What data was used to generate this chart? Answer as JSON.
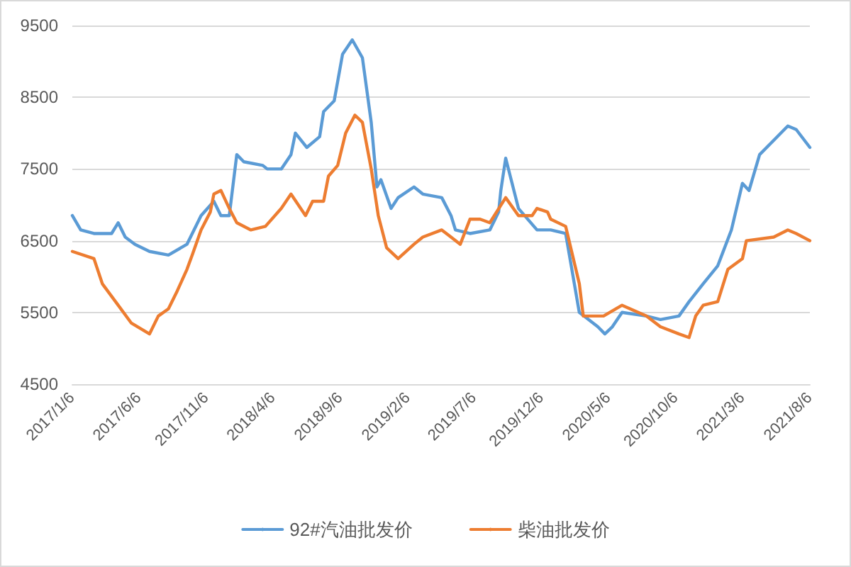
{
  "chart_data": {
    "type": "line",
    "series": [
      {
        "name": "92#汽油批发价",
        "color": "#5b9bd5",
        "x": [
          "2017-01-06",
          "2017-01-25",
          "2017-02-24",
          "2017-04-05",
          "2017-04-20",
          "2017-05-06",
          "2017-05-28",
          "2017-06-30",
          "2017-08-12",
          "2017-09-23",
          "2017-10-25",
          "2017-11-23",
          "2017-12-09",
          "2017-12-28",
          "2018-01-14",
          "2018-01-30",
          "2018-03-14",
          "2018-03-24",
          "2018-04-25",
          "2018-05-17",
          "2018-05-27",
          "2018-06-22",
          "2018-07-21",
          "2018-07-30",
          "2018-08-23",
          "2018-09-11",
          "2018-10-03",
          "2018-10-26",
          "2018-11-15",
          "2018-11-28",
          "2018-12-07",
          "2018-12-30",
          "2019-01-15",
          "2019-02-20",
          "2019-03-12",
          "2019-04-24",
          "2019-05-15",
          "2019-05-25",
          "2019-06-27",
          "2019-08-11",
          "2019-08-31",
          "2019-09-05",
          "2019-09-16",
          "2019-10-15",
          "2019-11-26",
          "2019-12-27",
          "2020-01-30",
          "2020-03-01",
          "2020-04-12",
          "2020-04-28",
          "2020-05-15",
          "2020-06-06",
          "2020-07-31",
          "2020-09-01",
          "2020-10-13",
          "2020-11-05",
          "2020-12-07",
          "2021-01-09",
          "2021-02-09",
          "2021-03-06",
          "2021-03-21",
          "2021-04-14",
          "2021-05-16",
          "2021-06-17",
          "2021-07-06",
          "2021-08-06"
        ],
        "values": [
          6850,
          6650,
          6600,
          6600,
          6750,
          6550,
          6450,
          6350,
          6300,
          6450,
          6850,
          7050,
          6850,
          6850,
          7700,
          7600,
          7550,
          7500,
          7500,
          7700,
          8000,
          7800,
          7950,
          8300,
          8450,
          9100,
          9300,
          9050,
          8150,
          7250,
          7350,
          6950,
          7100,
          7250,
          7150,
          7100,
          6850,
          6650,
          6600,
          6650,
          6900,
          7200,
          7650,
          6950,
          6650,
          6650,
          6600,
          5500,
          5300,
          5200,
          5300,
          5500,
          5450,
          5400,
          5450,
          5650,
          5900,
          6150,
          6650,
          7300,
          7200,
          7700,
          7900,
          8100,
          8050,
          7800
        ]
      },
      {
        "name": "柴油批发价",
        "color": "#ed7d31",
        "x": [
          "2017-01-06",
          "2017-02-24",
          "2017-03-15",
          "2017-04-20",
          "2017-05-20",
          "2017-06-30",
          "2017-07-20",
          "2017-08-12",
          "2017-09-01",
          "2017-09-23",
          "2017-10-05",
          "2017-10-25",
          "2017-11-15",
          "2017-11-23",
          "2017-12-09",
          "2017-12-28",
          "2018-01-14",
          "2018-02-15",
          "2018-03-20",
          "2018-04-25",
          "2018-05-17",
          "2018-06-19",
          "2018-07-05",
          "2018-07-30",
          "2018-08-10",
          "2018-08-31",
          "2018-09-18",
          "2018-10-09",
          "2018-10-26",
          "2018-11-15",
          "2018-12-01",
          "2018-12-20",
          "2019-01-15",
          "2019-02-20",
          "2019-03-12",
          "2019-04-24",
          "2019-05-15",
          "2019-06-05",
          "2019-06-27",
          "2019-07-20",
          "2019-08-11",
          "2019-09-16",
          "2019-10-15",
          "2019-11-15",
          "2019-11-26",
          "2019-12-20",
          "2019-12-27",
          "2020-01-30",
          "2020-03-01",
          "2020-03-10",
          "2020-04-25",
          "2020-06-06",
          "2020-07-31",
          "2020-09-01",
          "2020-10-13",
          "2020-11-05",
          "2020-11-20",
          "2020-12-07",
          "2021-01-09",
          "2021-02-01",
          "2021-03-06",
          "2021-03-15",
          "2021-05-16",
          "2021-06-17",
          "2021-07-06",
          "2021-08-06"
        ],
        "values": [
          6350,
          6250,
          5900,
          5600,
          5350,
          5200,
          5450,
          5550,
          5800,
          6100,
          6300,
          6650,
          6900,
          7150,
          7200,
          6950,
          6750,
          6650,
          6700,
          6950,
          7150,
          6850,
          7050,
          7050,
          7400,
          7550,
          8000,
          8250,
          8150,
          7500,
          6850,
          6400,
          6250,
          6450,
          6550,
          6650,
          6550,
          6450,
          6800,
          6800,
          6750,
          7100,
          6850,
          6850,
          6950,
          6900,
          6800,
          6700,
          5900,
          5450,
          5450,
          5600,
          5450,
          5300,
          5200,
          5150,
          5450,
          5600,
          5650,
          6100,
          6250,
          6500,
          6550,
          6650,
          6600,
          6500
        ]
      }
    ],
    "xlim": [
      "2017-01-06",
      "2021-08-06"
    ],
    "xticks": [
      {
        "value": "2017-01-06",
        "label": "2017/1/6"
      },
      {
        "value": "2017-06-06",
        "label": "2017/6/6"
      },
      {
        "value": "2017-11-06",
        "label": "2017/11/6"
      },
      {
        "value": "2018-04-06",
        "label": "2018/4/6"
      },
      {
        "value": "2018-09-06",
        "label": "2018/9/6"
      },
      {
        "value": "2019-02-06",
        "label": "2019/2/6"
      },
      {
        "value": "2019-07-06",
        "label": "2019/7/6"
      },
      {
        "value": "2019-12-06",
        "label": "2019/12/6"
      },
      {
        "value": "2020-05-06",
        "label": "2020/5/6"
      },
      {
        "value": "2020-10-06",
        "label": "2020/10/6"
      },
      {
        "value": "2021-03-06",
        "label": "2021/3/6"
      },
      {
        "value": "2021-08-06",
        "label": "2021/8/6"
      }
    ],
    "ylim": [
      4500,
      9500
    ],
    "yticks": [
      4500,
      5500,
      6500,
      7500,
      8500,
      9500
    ],
    "grid": "y",
    "legend": "bottom",
    "marker": "none",
    "line_style": "solid"
  }
}
